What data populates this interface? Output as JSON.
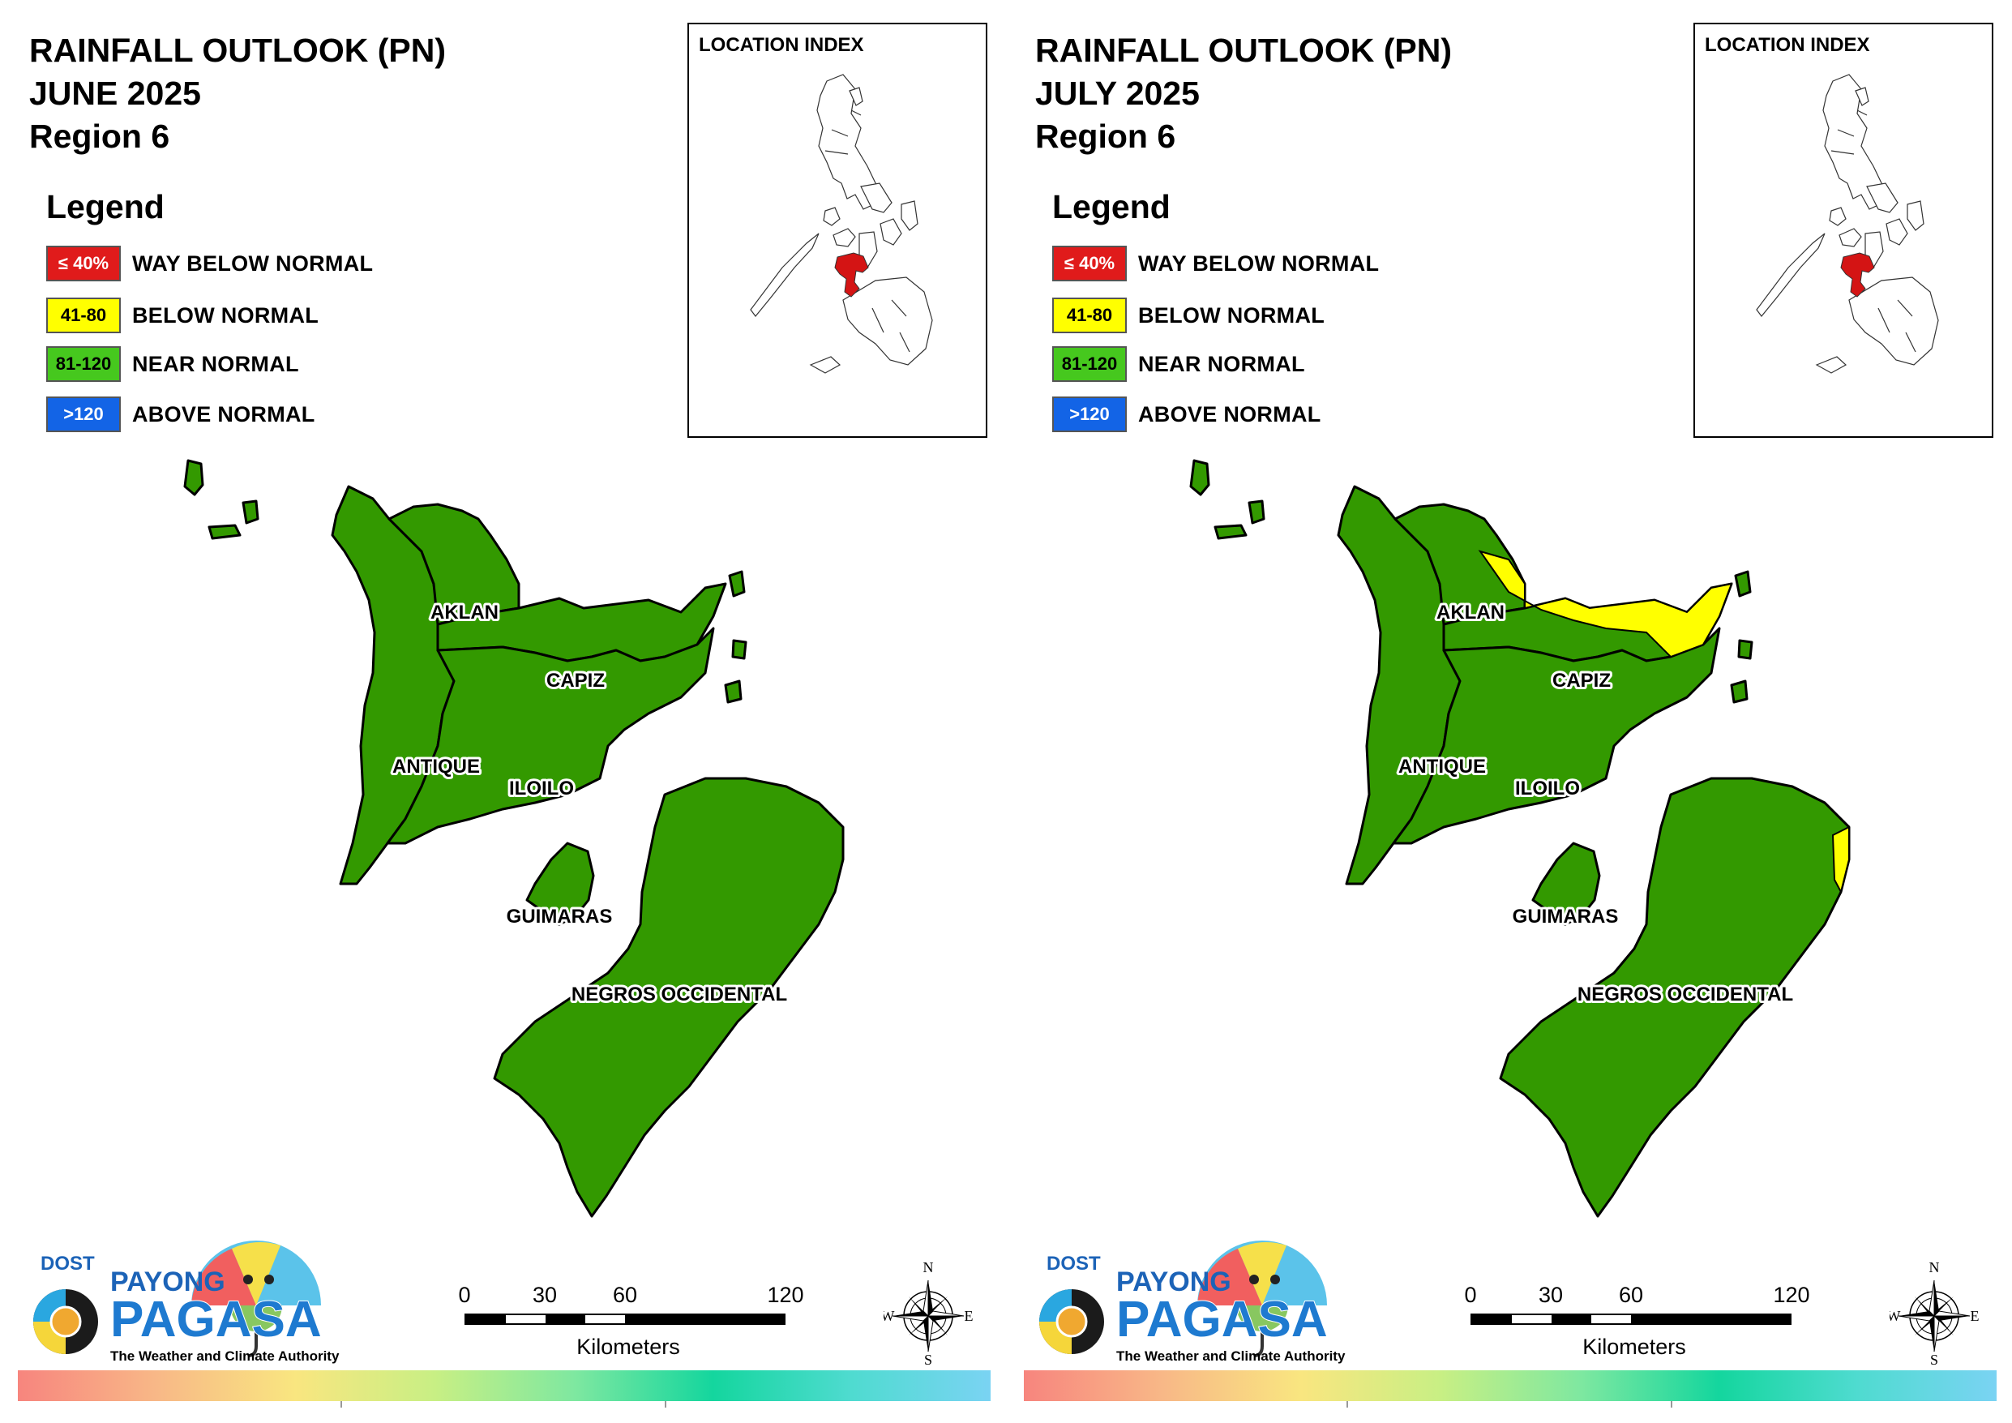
{
  "panels": [
    {
      "title_line1": "RAINFALL OUTLOOK (PN)",
      "title_line2": "JUNE 2025",
      "title_line3": "Region 6",
      "legend_title": "Legend",
      "legend": [
        {
          "swatch": "≤ 40%",
          "label": "WAY BELOW NORMAL",
          "color": "#e01b1b",
          "text_color": "#ffffff"
        },
        {
          "swatch": "41-80",
          "label": "BELOW NORMAL",
          "color": "#ffff00",
          "text_color": "#000000"
        },
        {
          "swatch": "81-120",
          "label": "NEAR NORMAL",
          "color": "#46c81e",
          "text_color": "#000000"
        },
        {
          "swatch": ">120",
          "label": "ABOVE NORMAL",
          "color": "#1364e6",
          "text_color": "#ffffff"
        }
      ],
      "inset_title": "LOCATION INDEX",
      "provinces": {
        "aklan": "AKLAN",
        "capiz": "CAPIZ",
        "antique": "ANTIQUE",
        "iloilo": "ILOILO",
        "guimaras": "GUIMARAS",
        "negros": "NEGROS OCCIDENTAL"
      },
      "province_category": {
        "aklan": "NEAR NORMAL",
        "capiz": "NEAR NORMAL",
        "antique": "NEAR NORMAL",
        "iloilo": "NEAR NORMAL",
        "guimaras": "NEAR NORMAL",
        "negros": "NEAR NORMAL"
      },
      "below_normal_areas": [],
      "scale": {
        "t0": "0",
        "t1": "30",
        "t2": "60",
        "t3": "120",
        "unit": "Kilometers"
      },
      "compass": {
        "n": "N",
        "s": "S",
        "e": "E",
        "w": "W"
      },
      "logo": {
        "dost": "DOST",
        "payong": "PAYONG",
        "pagasa": "PAGASA",
        "tagline": "The Weather and Climate Authority"
      }
    },
    {
      "title_line1": "RAINFALL OUTLOOK (PN)",
      "title_line2": "JULY 2025",
      "title_line3": "Region 6",
      "legend_title": "Legend",
      "legend": [
        {
          "swatch": "≤ 40%",
          "label": "WAY BELOW NORMAL",
          "color": "#e01b1b",
          "text_color": "#ffffff"
        },
        {
          "swatch": "41-80",
          "label": "BELOW NORMAL",
          "color": "#ffff00",
          "text_color": "#000000"
        },
        {
          "swatch": "81-120",
          "label": "NEAR NORMAL",
          "color": "#46c81e",
          "text_color": "#000000"
        },
        {
          "swatch": ">120",
          "label": "ABOVE NORMAL",
          "color": "#1364e6",
          "text_color": "#ffffff"
        }
      ],
      "inset_title": "LOCATION INDEX",
      "provinces": {
        "aklan": "AKLAN",
        "capiz": "CAPIZ",
        "antique": "ANTIQUE",
        "iloilo": "ILOILO",
        "guimaras": "GUIMARAS",
        "negros": "NEGROS OCCIDENTAL"
      },
      "province_category": {
        "aklan": "NEAR NORMAL",
        "capiz": "NEAR NORMAL",
        "antique": "NEAR NORMAL",
        "iloilo": "NEAR NORMAL",
        "guimaras": "NEAR NORMAL",
        "negros": "NEAR NORMAL"
      },
      "below_normal_areas": [
        "northeast Aklan",
        "north Capiz",
        "northeast tip of Negros Occidental"
      ],
      "scale": {
        "t0": "0",
        "t1": "30",
        "t2": "60",
        "t3": "120",
        "unit": "Kilometers"
      },
      "compass": {
        "n": "N",
        "s": "S",
        "e": "E",
        "w": "W"
      },
      "logo": {
        "dost": "DOST",
        "payong": "PAYONG",
        "pagasa": "PAGASA",
        "tagline": "The Weather and Climate Authority"
      }
    }
  ],
  "colors": {
    "map_fill": "#339900",
    "below_normal": "#ffff00",
    "location_highlight": "#d41414",
    "gradient": [
      "#f7857e",
      "#f8b887",
      "#f9e680",
      "#c8ef84",
      "#7fe8a0",
      "#14d69e",
      "#4fdbd0",
      "#7ad3f3"
    ]
  }
}
